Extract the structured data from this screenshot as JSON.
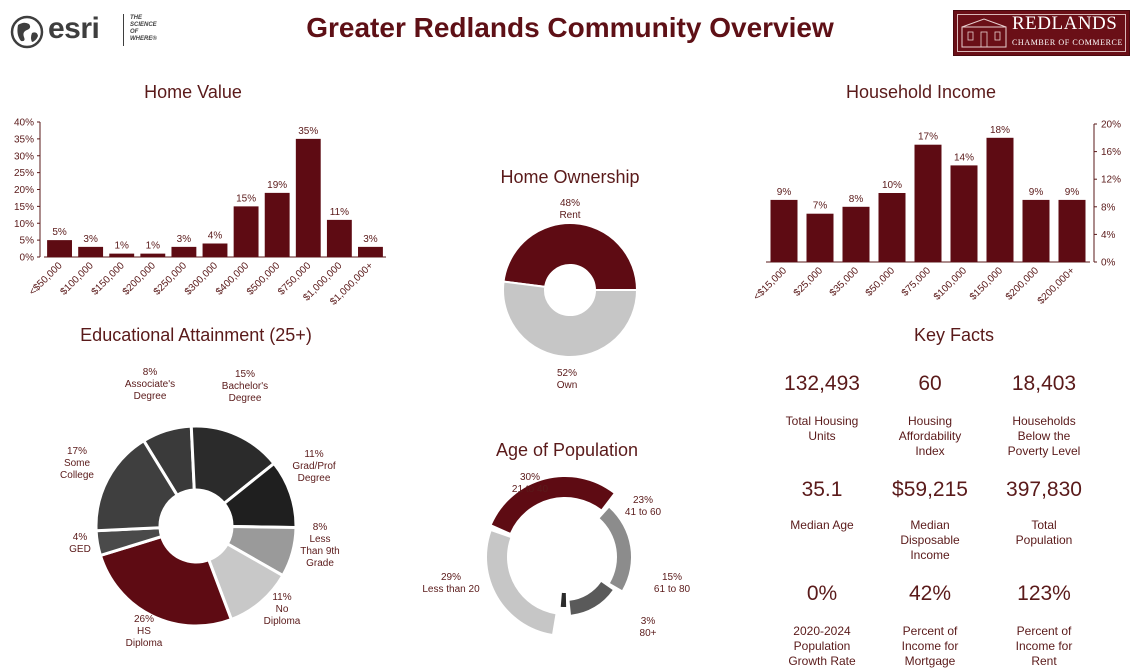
{
  "header": {
    "title": "Greater Redlands Community Overview",
    "esri_wordmark": "esri",
    "esri_tagline": [
      "THE",
      "SCIENCE",
      "OF",
      "WHERE®"
    ],
    "chamber_name": "REDLANDS",
    "chamber_sub": "CHAMBER OF COMMERCE"
  },
  "colors": {
    "primary": "#5e0b13",
    "title": "#5e1016",
    "text": "#5a1a1a"
  },
  "chart_data": [
    {
      "id": "home_value",
      "type": "bar",
      "title": "Home Value",
      "categories": [
        "<$50,000",
        "$100,000",
        "$150,000",
        "$200,000",
        "$250,000",
        "$300,000",
        "$400,000",
        "$500,000",
        "$750,000",
        "$1,000,000",
        "$1,000,000+"
      ],
      "values": [
        5,
        3,
        1,
        1,
        3,
        4,
        15,
        19,
        35,
        11,
        3
      ],
      "value_labels": [
        "5%",
        "3%",
        "1%",
        "1%",
        "3%",
        "4%",
        "15%",
        "19%",
        "35%",
        "11%",
        "3%"
      ],
      "y_ticks": [
        "0%",
        "5%",
        "10%",
        "15%",
        "20%",
        "25%",
        "30%",
        "35%",
        "40%"
      ],
      "ylim": [
        0,
        40
      ],
      "grid": false
    },
    {
      "id": "household_income",
      "type": "bar",
      "title": "Household Income",
      "categories": [
        "<$15,000",
        "$25,000",
        "$35,000",
        "$50,000",
        "$75,000",
        "$100,000",
        "$150,000",
        "$200,000",
        "$200,000+"
      ],
      "values": [
        9,
        7,
        8,
        10,
        17,
        14,
        18,
        9,
        9
      ],
      "value_labels": [
        "9%",
        "7%",
        "8%",
        "10%",
        "17%",
        "14%",
        "18%",
        "9%",
        "9%"
      ],
      "y_ticks": [
        "0%",
        "4%",
        "8%",
        "12%",
        "16%",
        "20%"
      ],
      "ylim": [
        0,
        20
      ],
      "y_axis_side": "right",
      "grid": false
    },
    {
      "id": "home_ownership",
      "type": "pie",
      "title": "Home Ownership",
      "style": "donut",
      "slices": [
        {
          "label": "Rent",
          "value": 48,
          "value_label": "48%",
          "color": "#5e0b13"
        },
        {
          "label": "Own",
          "value": 52,
          "value_label": "52%",
          "color": "#c6c6c6"
        }
      ]
    },
    {
      "id": "educational_attainment",
      "type": "pie",
      "title": "Educational Attainment (25+)",
      "style": "donut",
      "slices": [
        {
          "label": "Associate's Degree",
          "value": 8,
          "value_label": "8%",
          "color": "#3a3a3a"
        },
        {
          "label": "Bachelor's Degree",
          "value": 15,
          "value_label": "15%",
          "color": "#2b2b2b"
        },
        {
          "label": "Grad/Prof Degree",
          "value": 11,
          "value_label": "11%",
          "color": "#1f1f1f"
        },
        {
          "label": "Less Than 9th Grade",
          "value": 8,
          "value_label": "8%",
          "color": "#9a9a9a"
        },
        {
          "label": "No Diploma",
          "value": 11,
          "value_label": "11%",
          "color": "#c8c8c8"
        },
        {
          "label": "HS Diploma",
          "value": 26,
          "value_label": "26%",
          "color": "#5e0b13"
        },
        {
          "label": "GED",
          "value": 4,
          "value_label": "4%",
          "color": "#4a4a4a"
        },
        {
          "label": "Some College",
          "value": 17,
          "value_label": "17%",
          "color": "#3f3f3f"
        }
      ]
    },
    {
      "id": "age_of_population",
      "type": "pie",
      "title": "Age of Population",
      "style": "segmented ring",
      "slices": [
        {
          "label": "21 to 40",
          "value": 30,
          "value_label": "30%",
          "color": "#5e0b13"
        },
        {
          "label": "41 to 60",
          "value": 23,
          "value_label": "23%",
          "color": "#8c8c8c"
        },
        {
          "label": "61 to 80",
          "value": 15,
          "value_label": "15%",
          "color": "#5a5a5a"
        },
        {
          "label": "80+",
          "value": 3,
          "value_label": "3%",
          "color": "#2b2b2b"
        },
        {
          "label": "Less than 20",
          "value": 29,
          "value_label": "29%",
          "color": "#c6c6c6"
        }
      ]
    }
  ],
  "key_facts": {
    "title": "Key Facts",
    "items": [
      {
        "value": "132,493",
        "label": [
          "Total Housing",
          "Units"
        ]
      },
      {
        "value": "60",
        "label": [
          "Housing",
          "Affordability",
          "Index"
        ]
      },
      {
        "value": "18,403",
        "label": [
          "Households",
          "Below the",
          "Poverty Level"
        ]
      },
      {
        "value": "35.1",
        "label": [
          "Median Age"
        ]
      },
      {
        "value": "$59,215",
        "label": [
          "Median",
          "Disposable",
          "Income"
        ]
      },
      {
        "value": "397,830",
        "label": [
          "Total",
          "Population"
        ]
      },
      {
        "value": "0%",
        "label": [
          "2020-2024",
          "Population",
          "Growth Rate"
        ]
      },
      {
        "value": "42%",
        "label": [
          "Percent of",
          "Income for",
          "Mortgage"
        ]
      },
      {
        "value": "123%",
        "label": [
          "Percent of",
          "Income for",
          "Rent"
        ]
      }
    ]
  }
}
